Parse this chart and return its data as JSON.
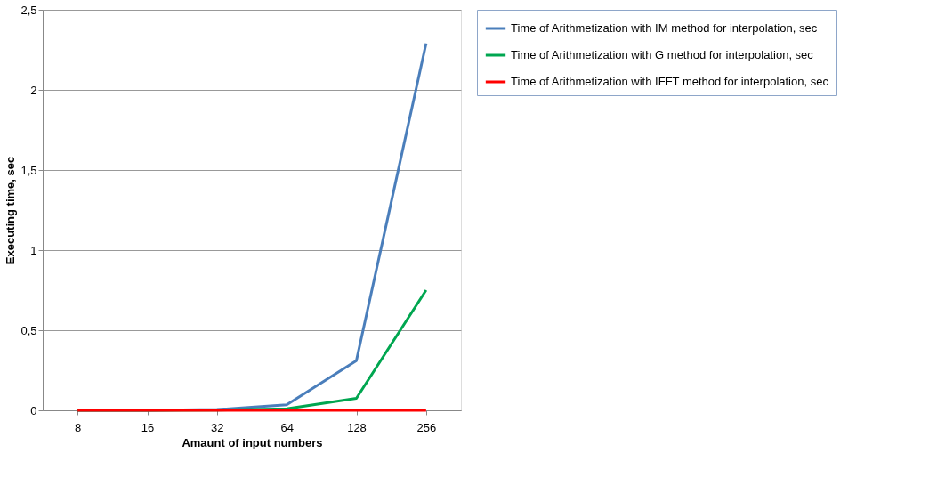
{
  "chart_data": {
    "type": "line",
    "xlabel": "Amaunt of input numbers",
    "ylabel": "Executing time, sec",
    "categories": [
      "8",
      "16",
      "32",
      "64",
      "128",
      "256"
    ],
    "series": [
      {
        "name": "Time of Arithmetization with IM method for interpolation, sec",
        "color": "#4a7ebb",
        "values": [
          0,
          0,
          0.005,
          0.035,
          0.31,
          2.29
        ]
      },
      {
        "name": "Time of Arithmetization with G method for interpolation, sec",
        "color": "#00a650",
        "values": [
          0,
          0,
          0.002,
          0.01,
          0.075,
          0.75
        ]
      },
      {
        "name": "Time of Arithmetization with IFFT method for interpolation, sec",
        "color": "#ff0000",
        "values": [
          0,
          0,
          0,
          0,
          0,
          0
        ]
      }
    ],
    "ylim": [
      0,
      2.5
    ],
    "yticks": [
      0,
      {
        "value": 0.5,
        "label": "0,5"
      },
      1,
      {
        "value": 1.5,
        "label": "1,5"
      },
      2,
      {
        "value": 2.5,
        "label": "2,5"
      }
    ],
    "grid": "y",
    "legend": "right",
    "marker": "none",
    "line_style": "solid"
  }
}
